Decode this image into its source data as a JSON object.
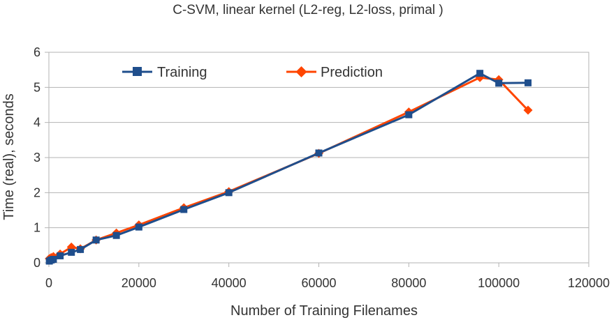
{
  "chart_data": {
    "type": "line",
    "title": "C-SVM, linear kernel (L2-reg, L2-loss, primal )",
    "xlabel": "Number of Training Filenames",
    "ylabel": "Time (real), seconds",
    "xlim": [
      0,
      120000
    ],
    "ylim": [
      0,
      6
    ],
    "x_ticks": [
      "0",
      "20000",
      "40000",
      "60000",
      "80000",
      "100000",
      "120000"
    ],
    "y_ticks": [
      "0",
      "1",
      "2",
      "3",
      "4",
      "5",
      "6"
    ],
    "grid": "horizontal",
    "legend_position": "top",
    "series": [
      {
        "name": "Training",
        "color": "#1f4e8c",
        "marker": "square",
        "x": [
          100,
          500,
          1000,
          2500,
          5000,
          7000,
          10500,
          15000,
          20000,
          30000,
          40000,
          60000,
          80000,
          95800,
          100000,
          106500
        ],
        "y": [
          0.05,
          0.08,
          0.1,
          0.2,
          0.3,
          0.38,
          0.65,
          0.78,
          1.02,
          1.52,
          2.0,
          3.13,
          4.22,
          5.4,
          5.12,
          5.13
        ]
      },
      {
        "name": "Prediction",
        "color": "#ff4500",
        "marker": "diamond",
        "x": [
          100,
          500,
          1000,
          2500,
          5000,
          7000,
          10500,
          15000,
          20000,
          30000,
          40000,
          60000,
          80000,
          95800,
          100000,
          106500
        ],
        "y": [
          0.12,
          0.15,
          0.18,
          0.25,
          0.45,
          0.4,
          0.65,
          0.85,
          1.08,
          1.57,
          2.03,
          3.12,
          4.3,
          5.28,
          5.22,
          4.35
        ]
      }
    ]
  }
}
